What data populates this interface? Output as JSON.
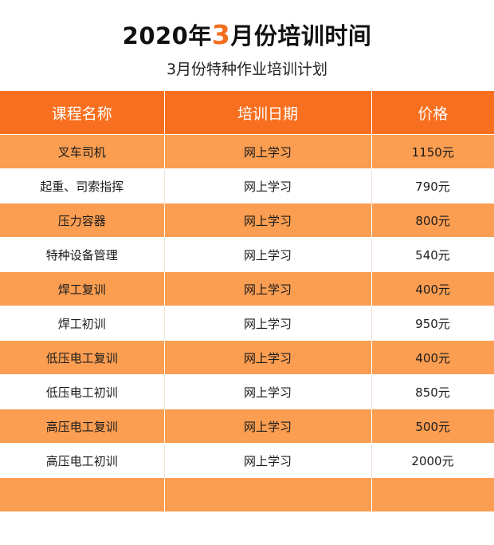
{
  "title": {
    "prefix": "2020年",
    "highlight": "3",
    "suffix": "月份培训时间"
  },
  "subtitle": "3月份特种作业培训计划",
  "table": {
    "headers": [
      "课程名称",
      "培训日期",
      "价格"
    ],
    "rows": [
      {
        "course": "叉车司机",
        "date": "网上学习",
        "price": "1150元"
      },
      {
        "course": "起重、司索指挥",
        "date": "网上学习",
        "price": "790元"
      },
      {
        "course": "压力容器",
        "date": "网上学习",
        "price": "800元"
      },
      {
        "course": "特种设备管理",
        "date": "网上学习",
        "price": "540元"
      },
      {
        "course": "焊工复训",
        "date": "网上学习",
        "price": "400元"
      },
      {
        "course": "焊工初训",
        "date": "网上学习",
        "price": "950元"
      },
      {
        "course": "低压电工复训",
        "date": "网上学习",
        "price": "400元"
      },
      {
        "course": "低压电工初训",
        "date": "网上学习",
        "price": "850元"
      },
      {
        "course": "高压电工复训",
        "date": "网上学习",
        "price": "500元"
      },
      {
        "course": "高压电工初训",
        "date": "网上学习",
        "price": "2000元"
      }
    ]
  },
  "colors": {
    "accent": "#f26f1e",
    "header_bg": "#f8701f",
    "stripe_bg": "#fb9e52"
  }
}
